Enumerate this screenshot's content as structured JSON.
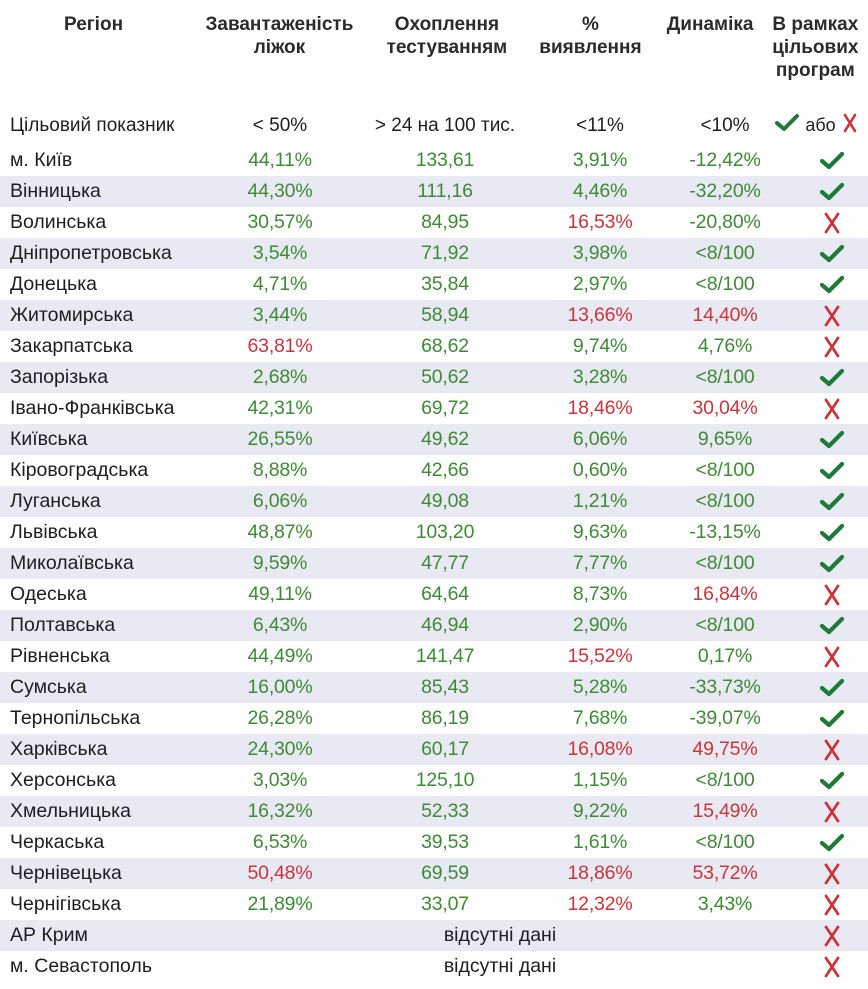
{
  "header": {
    "region": "Регіон",
    "beds": "Завантаженість\nліжок",
    "testing": "Охоплення\nтестуванням",
    "detection": "%\nвиявлення",
    "dynamics": "Динаміка",
    "programs": "В рамках\nцільових\nпрограм"
  },
  "target": {
    "label": "Цільовий показник",
    "beds": "< 50%",
    "testing": "> 24 на 100 тис.",
    "detection": "<11%",
    "dynamics": "<10%",
    "or": "або"
  },
  "no_data_label": "відсутні дані",
  "colors": {
    "green": "#3f8a36",
    "red": "#c8353a",
    "stripe": "#e8e9f2",
    "check": "#1f7a3a",
    "cross": "#c8353a"
  },
  "rows": [
    {
      "region": "м. Київ",
      "beds": "44,11%",
      "beds_c": "g",
      "testing": "133,61",
      "testing_c": "g",
      "detection": "3,91%",
      "detection_c": "g",
      "dynamics": "-12,42%",
      "dynamics_c": "g",
      "ok": true
    },
    {
      "region": "Вінницька",
      "beds": "44,30%",
      "beds_c": "g",
      "testing": "111,16",
      "testing_c": "g",
      "detection": "4,46%",
      "detection_c": "g",
      "dynamics": "-32,20%",
      "dynamics_c": "g",
      "ok": true
    },
    {
      "region": "Волинська",
      "beds": "30,57%",
      "beds_c": "g",
      "testing": "84,95",
      "testing_c": "g",
      "detection": "16,53%",
      "detection_c": "r",
      "dynamics": "-20,80%",
      "dynamics_c": "g",
      "ok": false
    },
    {
      "region": "Дніпропетровська",
      "beds": "3,54%",
      "beds_c": "g",
      "testing": "71,92",
      "testing_c": "g",
      "detection": "3,98%",
      "detection_c": "g",
      "dynamics": "<8/100",
      "dynamics_c": "g",
      "ok": true
    },
    {
      "region": "Донецька",
      "beds": "4,71%",
      "beds_c": "g",
      "testing": "35,84",
      "testing_c": "g",
      "detection": "2,97%",
      "detection_c": "g",
      "dynamics": "<8/100",
      "dynamics_c": "g",
      "ok": true
    },
    {
      "region": "Житомирська",
      "beds": "3,44%",
      "beds_c": "g",
      "testing": "58,94",
      "testing_c": "g",
      "detection": "13,66%",
      "detection_c": "r",
      "dynamics": "14,40%",
      "dynamics_c": "r",
      "ok": false
    },
    {
      "region": "Закарпатська",
      "beds": "63,81%",
      "beds_c": "r",
      "testing": "68,62",
      "testing_c": "g",
      "detection": "9,74%",
      "detection_c": "g",
      "dynamics": "4,76%",
      "dynamics_c": "g",
      "ok": false
    },
    {
      "region": "Запорізька",
      "beds": "2,68%",
      "beds_c": "g",
      "testing": "50,62",
      "testing_c": "g",
      "detection": "3,28%",
      "detection_c": "g",
      "dynamics": "<8/100",
      "dynamics_c": "g",
      "ok": true
    },
    {
      "region": "Івано-Франківська",
      "beds": "42,31%",
      "beds_c": "g",
      "testing": "69,72",
      "testing_c": "g",
      "detection": "18,46%",
      "detection_c": "r",
      "dynamics": "30,04%",
      "dynamics_c": "r",
      "ok": false
    },
    {
      "region": "Київська",
      "beds": "26,55%",
      "beds_c": "g",
      "testing": "49,62",
      "testing_c": "g",
      "detection": "6,06%",
      "detection_c": "g",
      "dynamics": "9,65%",
      "dynamics_c": "g",
      "ok": true
    },
    {
      "region": "Кіровоградська",
      "beds": "8,88%",
      "beds_c": "g",
      "testing": "42,66",
      "testing_c": "g",
      "detection": "0,60%",
      "detection_c": "g",
      "dynamics": "<8/100",
      "dynamics_c": "g",
      "ok": true
    },
    {
      "region": "Луганська",
      "beds": "6,06%",
      "beds_c": "g",
      "testing": "49,08",
      "testing_c": "g",
      "detection": "1,21%",
      "detection_c": "g",
      "dynamics": "<8/100",
      "dynamics_c": "g",
      "ok": true
    },
    {
      "region": "Львівська",
      "beds": "48,87%",
      "beds_c": "g",
      "testing": "103,20",
      "testing_c": "g",
      "detection": "9,63%",
      "detection_c": "g",
      "dynamics": "-13,15%",
      "dynamics_c": "g",
      "ok": true
    },
    {
      "region": "Миколаївська",
      "beds": "9,59%",
      "beds_c": "g",
      "testing": "47,77",
      "testing_c": "g",
      "detection": "7,77%",
      "detection_c": "g",
      "dynamics": "<8/100",
      "dynamics_c": "g",
      "ok": true
    },
    {
      "region": "Одеська",
      "beds": "49,11%",
      "beds_c": "g",
      "testing": "64,64",
      "testing_c": "g",
      "detection": "8,73%",
      "detection_c": "g",
      "dynamics": "16,84%",
      "dynamics_c": "r",
      "ok": false
    },
    {
      "region": "Полтавська",
      "beds": "6,43%",
      "beds_c": "g",
      "testing": "46,94",
      "testing_c": "g",
      "detection": "2,90%",
      "detection_c": "g",
      "dynamics": "<8/100",
      "dynamics_c": "g",
      "ok": true
    },
    {
      "region": "Рівненська",
      "beds": "44,49%",
      "beds_c": "g",
      "testing": "141,47",
      "testing_c": "g",
      "detection": "15,52%",
      "detection_c": "r",
      "dynamics": "0,17%",
      "dynamics_c": "g",
      "ok": false
    },
    {
      "region": "Сумська",
      "beds": "16,00%",
      "beds_c": "g",
      "testing": "85,43",
      "testing_c": "g",
      "detection": "5,28%",
      "detection_c": "g",
      "dynamics": "-33,73%",
      "dynamics_c": "g",
      "ok": true
    },
    {
      "region": "Тернопільська",
      "beds": "26,28%",
      "beds_c": "g",
      "testing": "86,19",
      "testing_c": "g",
      "detection": "7,68%",
      "detection_c": "g",
      "dynamics": "-39,07%",
      "dynamics_c": "g",
      "ok": true
    },
    {
      "region": "Харківська",
      "beds": "24,30%",
      "beds_c": "g",
      "testing": "60,17",
      "testing_c": "g",
      "detection": "16,08%",
      "detection_c": "r",
      "dynamics": "49,75%",
      "dynamics_c": "r",
      "ok": false
    },
    {
      "region": "Херсонська",
      "beds": "3,03%",
      "beds_c": "g",
      "testing": "125,10",
      "testing_c": "g",
      "detection": "1,15%",
      "detection_c": "g",
      "dynamics": "<8/100",
      "dynamics_c": "g",
      "ok": true
    },
    {
      "region": "Хмельницька",
      "beds": "16,32%",
      "beds_c": "g",
      "testing": "52,33",
      "testing_c": "g",
      "detection": "9,22%",
      "detection_c": "g",
      "dynamics": "15,49%",
      "dynamics_c": "r",
      "ok": false
    },
    {
      "region": "Черкаська",
      "beds": "6,53%",
      "beds_c": "g",
      "testing": "39,53",
      "testing_c": "g",
      "detection": "1,61%",
      "detection_c": "g",
      "dynamics": "<8/100",
      "dynamics_c": "g",
      "ok": true
    },
    {
      "region": "Чернівецька",
      "beds": "50,48%",
      "beds_c": "r",
      "testing": "69,59",
      "testing_c": "g",
      "detection": "18,86%",
      "detection_c": "r",
      "dynamics": "53,72%",
      "dynamics_c": "r",
      "ok": false
    },
    {
      "region": "Чернігівська",
      "beds": "21,89%",
      "beds_c": "g",
      "testing": "33,07",
      "testing_c": "g",
      "detection": "12,32%",
      "detection_c": "r",
      "dynamics": "3,43%",
      "dynamics_c": "g",
      "ok": false
    },
    {
      "region": "АР Крим",
      "nodata": true,
      "ok": false
    },
    {
      "region": "м. Севастополь",
      "nodata": true,
      "ok": false
    }
  ]
}
